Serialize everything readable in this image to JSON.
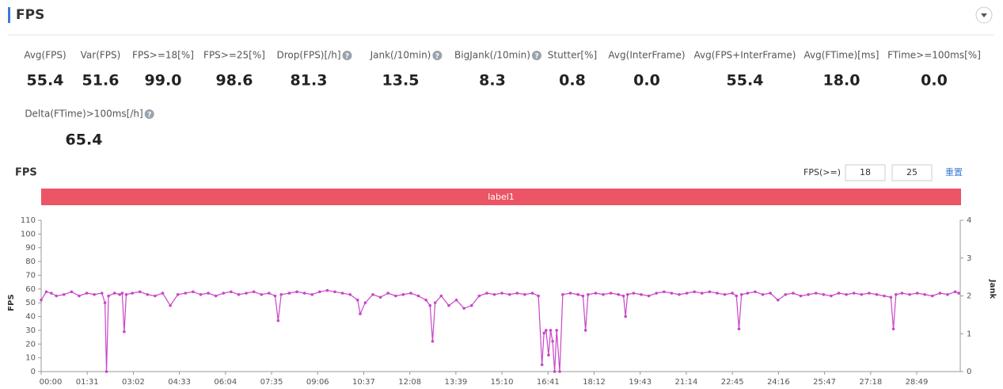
{
  "header": {
    "title": "FPS"
  },
  "metrics": [
    {
      "label": "Avg(FPS)",
      "value": "55.4"
    },
    {
      "label": "Var(FPS)",
      "value": "51.6"
    },
    {
      "label": "FPS>=18[%]",
      "value": "99.0"
    },
    {
      "label": "FPS>=25[%]",
      "value": "98.6"
    },
    {
      "label": "Drop(FPS)[/h]",
      "value": "81.3",
      "help": true
    },
    {
      "label": "Jank(/10min)",
      "value": "13.5",
      "help": true
    },
    {
      "label": "BigJank(/10min)",
      "value": "8.3",
      "help": true
    },
    {
      "label": "Stutter[%]",
      "value": "0.8"
    },
    {
      "label": "Avg(InterFrame)",
      "value": "0.0"
    },
    {
      "label": "Avg(FPS+InterFrame)",
      "value": "55.4"
    },
    {
      "label": "Avg(FTime)[ms]",
      "value": "18.0"
    },
    {
      "label": "FTime>=100ms[%]",
      "value": "0.0"
    },
    {
      "label": "Delta(FTime)>100ms[/h]",
      "value": "65.4",
      "help": true
    }
  ],
  "controls": {
    "threshold_label": "FPS(>=)",
    "threshold_low": "18",
    "threshold_high": "25",
    "reset": "重置"
  },
  "chart_data": {
    "type": "line",
    "title": "FPS",
    "band_label": "label1",
    "band_color": "#eb5565",
    "y_label": "FPS",
    "y2_label": "Jank",
    "x": [
      0,
      10,
      20,
      30,
      45,
      60,
      75,
      90,
      105,
      120,
      126,
      129,
      133,
      145,
      155,
      160,
      164,
      168,
      180,
      195,
      210,
      225,
      240,
      255,
      270,
      285,
      300,
      315,
      330,
      345,
      360,
      375,
      390,
      405,
      420,
      435,
      450,
      462,
      468,
      474,
      490,
      505,
      520,
      535,
      550,
      565,
      580,
      595,
      610,
      625,
      630,
      640,
      655,
      670,
      685,
      700,
      715,
      730,
      745,
      760,
      768,
      773,
      778,
      790,
      805,
      820,
      835,
      850,
      865,
      880,
      895,
      910,
      925,
      940,
      955,
      970,
      982,
      989,
      993,
      997,
      1002,
      1006,
      1010,
      1014,
      1018,
      1024,
      1030,
      1045,
      1060,
      1070,
      1075,
      1080,
      1095,
      1110,
      1125,
      1140,
      1150,
      1154,
      1158,
      1170,
      1185,
      1200,
      1215,
      1230,
      1245,
      1260,
      1275,
      1290,
      1305,
      1320,
      1335,
      1350,
      1365,
      1373,
      1378,
      1383,
      1395,
      1410,
      1425,
      1440,
      1455,
      1470,
      1485,
      1500,
      1515,
      1530,
      1545,
      1560,
      1575,
      1590,
      1605,
      1620,
      1635,
      1650,
      1665,
      1678,
      1683,
      1688,
      1700,
      1715,
      1730,
      1745,
      1760,
      1775,
      1790,
      1805,
      1812
    ],
    "series": [
      {
        "name": "FPS",
        "color": "#c846c8",
        "values": [
          52,
          58,
          57,
          55,
          56,
          58,
          55,
          57,
          56,
          57,
          50,
          0,
          55,
          57,
          56,
          57,
          29,
          56,
          57,
          58,
          56,
          55,
          57,
          48,
          56,
          57,
          58,
          56,
          57,
          55,
          57,
          58,
          56,
          57,
          58,
          56,
          57,
          55,
          37,
          56,
          57,
          58,
          57,
          56,
          58,
          59,
          58,
          57,
          56,
          52,
          42,
          50,
          56,
          54,
          57,
          55,
          56,
          57,
          55,
          52,
          48,
          22,
          50,
          55,
          48,
          52,
          46,
          48,
          55,
          57,
          56,
          57,
          56,
          57,
          56,
          57,
          55,
          5,
          28,
          30,
          12,
          30,
          22,
          0,
          30,
          0,
          56,
          57,
          56,
          55,
          30,
          56,
          57,
          56,
          57,
          56,
          55,
          40,
          56,
          57,
          56,
          55,
          57,
          58,
          57,
          56,
          57,
          58,
          57,
          58,
          57,
          56,
          57,
          55,
          31,
          56,
          57,
          58,
          56,
          57,
          52,
          56,
          57,
          55,
          56,
          57,
          56,
          55,
          57,
          56,
          57,
          56,
          57,
          56,
          55,
          54,
          31,
          56,
          57,
          56,
          57,
          56,
          55,
          57,
          56,
          58,
          57
        ]
      }
    ],
    "xlim": [
      0,
      1815
    ],
    "xticks": [
      {
        "value": 0,
        "label": "00:00"
      },
      {
        "value": 91,
        "label": "01:31"
      },
      {
        "value": 182,
        "label": "03:02"
      },
      {
        "value": 273,
        "label": "04:33"
      },
      {
        "value": 364,
        "label": "06:04"
      },
      {
        "value": 455,
        "label": "07:35"
      },
      {
        "value": 546,
        "label": "09:06"
      },
      {
        "value": 637,
        "label": "10:37"
      },
      {
        "value": 728,
        "label": "12:08"
      },
      {
        "value": 819,
        "label": "13:39"
      },
      {
        "value": 910,
        "label": "15:10"
      },
      {
        "value": 1001,
        "label": "16:41"
      },
      {
        "value": 1092,
        "label": "18:12"
      },
      {
        "value": 1183,
        "label": "19:43"
      },
      {
        "value": 1274,
        "label": "21:14"
      },
      {
        "value": 1365,
        "label": "22:45"
      },
      {
        "value": 1456,
        "label": "24:16"
      },
      {
        "value": 1547,
        "label": "25:47"
      },
      {
        "value": 1638,
        "label": "27:18"
      },
      {
        "value": 1729,
        "label": "28:49"
      }
    ],
    "ylim": [
      0,
      110
    ],
    "yticks": [
      0,
      10,
      20,
      30,
      40,
      50,
      60,
      70,
      80,
      90,
      100,
      110
    ],
    "y2lim": [
      0,
      4
    ],
    "y2ticks": [
      0,
      1,
      2,
      3,
      4
    ]
  }
}
